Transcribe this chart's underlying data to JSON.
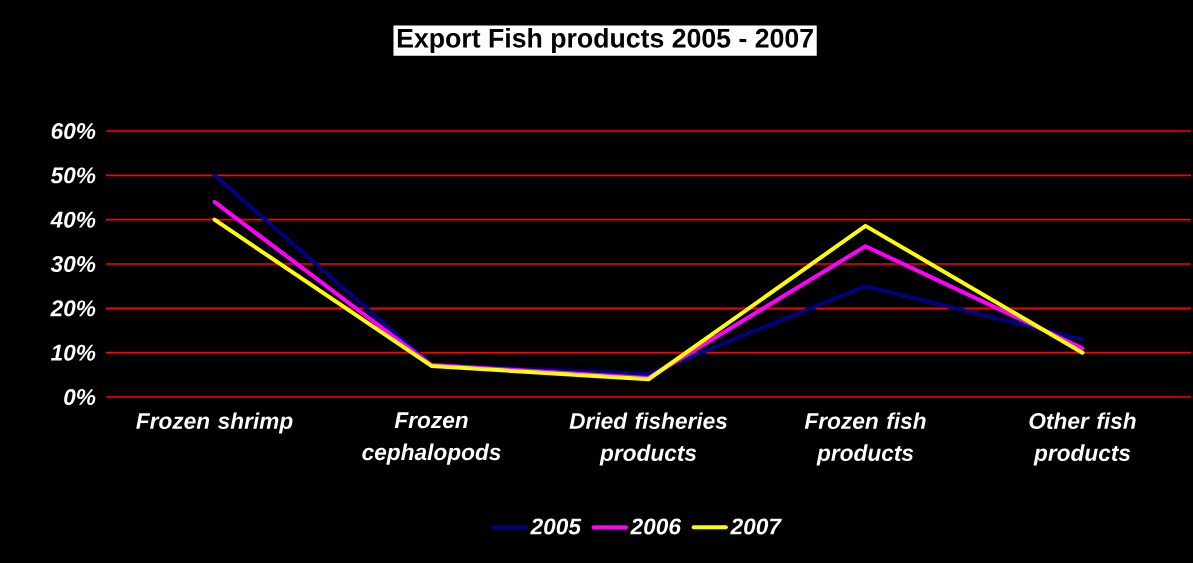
{
  "chart_data": {
    "type": "line",
    "title": "Export Fish products 2005 - 2007",
    "categories": [
      "Frozen shrimp",
      "Frozen cephalopods",
      "Dried fisheries products",
      "Frozen fish products",
      "Other fish products"
    ],
    "series": [
      {
        "name": "2005",
        "color": "#000080",
        "values": [
          50,
          7.2,
          5.2,
          25,
          13
        ]
      },
      {
        "name": "2006",
        "color": "#ff00ff",
        "values": [
          44,
          7.2,
          4.3,
          34,
          11
        ]
      },
      {
        "name": "2007",
        "color": "#ffff00",
        "values": [
          40,
          7,
          4,
          38.6,
          10
        ]
      }
    ],
    "ylim": [
      0,
      60
    ],
    "yticks": [
      {
        "value": 0,
        "label": "0%"
      },
      {
        "value": 10,
        "label": "10%"
      },
      {
        "value": 20,
        "label": "20%"
      },
      {
        "value": 30,
        "label": "30%"
      },
      {
        "value": 40,
        "label": "40%"
      },
      {
        "value": 50,
        "label": "50%"
      },
      {
        "value": 60,
        "label": "60%"
      }
    ],
    "grid": "y",
    "legend": "bottom",
    "marker": "none",
    "line_style": "solid"
  }
}
